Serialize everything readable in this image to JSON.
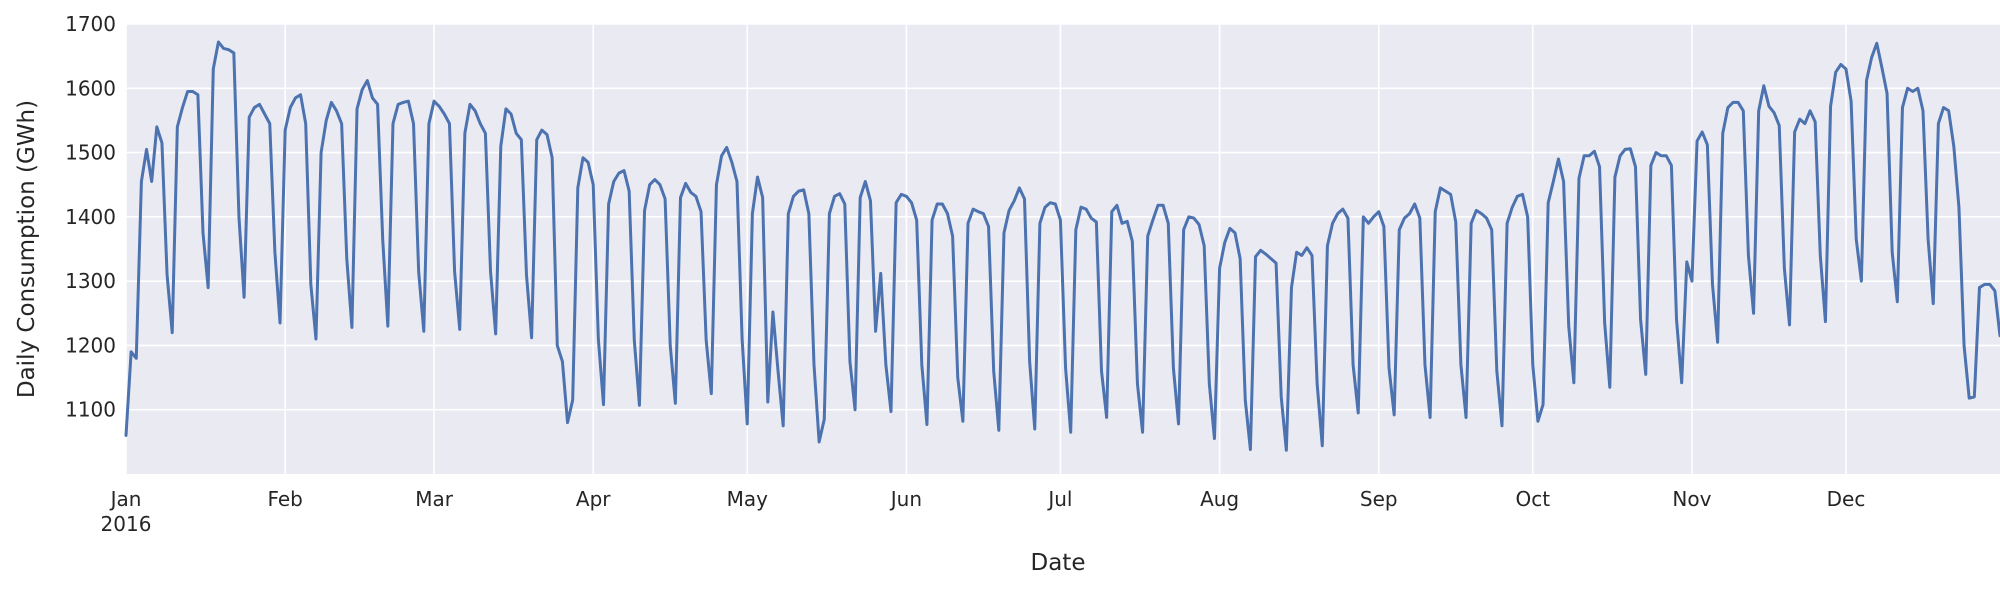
{
  "chart_data": {
    "type": "line",
    "title": "",
    "xlabel": "Date",
    "ylabel": "Daily Consumption (GWh)",
    "xlim": [
      "2016-01-01",
      "2016-12-31"
    ],
    "ylim": [
      1000,
      1700
    ],
    "yticks": [
      1100,
      1200,
      1300,
      1400,
      1500,
      1600,
      1700
    ],
    "xticks": [
      {
        "date": "2016-01-01",
        "label": "Jan",
        "sublabel": "2016"
      },
      {
        "date": "2016-02-01",
        "label": "Feb"
      },
      {
        "date": "2016-03-01",
        "label": "Mar"
      },
      {
        "date": "2016-04-01",
        "label": "Apr"
      },
      {
        "date": "2016-05-01",
        "label": "May"
      },
      {
        "date": "2016-06-01",
        "label": "Jun"
      },
      {
        "date": "2016-07-01",
        "label": "Jul"
      },
      {
        "date": "2016-08-01",
        "label": "Aug"
      },
      {
        "date": "2016-09-01",
        "label": "Sep"
      },
      {
        "date": "2016-10-01",
        "label": "Oct"
      },
      {
        "date": "2016-11-01",
        "label": "Nov"
      },
      {
        "date": "2016-12-01",
        "label": "Dec"
      }
    ],
    "grid": true,
    "line_color": "#4c72b0",
    "background_color": "#eaeaf2",
    "series": [
      {
        "start_date": "2016-01-01",
        "values": [
          1060,
          1190,
          1180,
          1455,
          1505,
          1455,
          1540,
          1515,
          1310,
          1220,
          1540,
          1570,
          1595,
          1595,
          1590,
          1375,
          1290,
          1630,
          1672,
          1662,
          1660,
          1655,
          1400,
          1275,
          1555,
          1570,
          1575,
          1560,
          1545,
          1345,
          1235,
          1535,
          1570,
          1585,
          1590,
          1545,
          1295,
          1210,
          1500,
          1550,
          1578,
          1565,
          1545,
          1335,
          1228,
          1568,
          1598,
          1612,
          1585,
          1575,
          1365,
          1230,
          1545,
          1575,
          1578,
          1580,
          1545,
          1315,
          1222,
          1545,
          1580,
          1572,
          1560,
          1545,
          1315,
          1225,
          1530,
          1575,
          1565,
          1545,
          1530,
          1315,
          1218,
          1510,
          1568,
          1560,
          1530,
          1520,
          1310,
          1212,
          1520,
          1535,
          1528,
          1492,
          1200,
          1175,
          1080,
          1115,
          1445,
          1492,
          1485,
          1450,
          1210,
          1108,
          1420,
          1455,
          1468,
          1472,
          1440,
          1208,
          1107,
          1410,
          1450,
          1458,
          1450,
          1428,
          1200,
          1110,
          1430,
          1452,
          1438,
          1432,
          1408,
          1208,
          1125,
          1450,
          1495,
          1508,
          1485,
          1455,
          1210,
          1078,
          1405,
          1462,
          1430,
          1112,
          1252,
          1160,
          1075,
          1405,
          1432,
          1440,
          1442,
          1405,
          1170,
          1050,
          1085,
          1405,
          1432,
          1436,
          1420,
          1175,
          1100,
          1430,
          1455,
          1425,
          1222,
          1312,
          1170,
          1097,
          1422,
          1435,
          1432,
          1422,
          1395,
          1170,
          1077,
          1395,
          1420,
          1420,
          1405,
          1370,
          1150,
          1082,
          1390,
          1412,
          1408,
          1405,
          1385,
          1160,
          1068,
          1375,
          1410,
          1425,
          1445,
          1428,
          1175,
          1070,
          1390,
          1415,
          1422,
          1420,
          1395,
          1165,
          1065,
          1380,
          1415,
          1412,
          1398,
          1392,
          1160,
          1088,
          1408,
          1418,
          1390,
          1393,
          1362,
          1140,
          1065,
          1370,
          1395,
          1418,
          1418,
          1390,
          1165,
          1078,
          1380,
          1400,
          1398,
          1388,
          1355,
          1140,
          1055,
          1320,
          1360,
          1382,
          1375,
          1335,
          1115,
          1038,
          1338,
          1348,
          1342,
          1335,
          1328,
          1120,
          1037,
          1290,
          1345,
          1340,
          1352,
          1340,
          1140,
          1044,
          1355,
          1390,
          1405,
          1412,
          1398,
          1170,
          1095,
          1400,
          1390,
          1400,
          1408,
          1385,
          1165,
          1092,
          1380,
          1398,
          1405,
          1420,
          1398,
          1170,
          1088,
          1408,
          1445,
          1440,
          1435,
          1392,
          1170,
          1088,
          1390,
          1410,
          1405,
          1398,
          1380,
          1160,
          1075,
          1390,
          1415,
          1432,
          1435,
          1400,
          1170,
          1082,
          1108,
          1422,
          1455,
          1490,
          1455,
          1230,
          1142,
          1460,
          1495,
          1495,
          1502,
          1478,
          1235,
          1135,
          1462,
          1495,
          1505,
          1506,
          1478,
          1240,
          1155,
          1480,
          1500,
          1495,
          1495,
          1480,
          1240,
          1142,
          1330,
          1300,
          1518,
          1532,
          1512,
          1295,
          1205,
          1530,
          1570,
          1578,
          1578,
          1565,
          1340,
          1250,
          1565,
          1604,
          1572,
          1562,
          1542,
          1320,
          1232,
          1532,
          1552,
          1545,
          1565,
          1548,
          1340,
          1237,
          1572,
          1625,
          1637,
          1630,
          1580,
          1365,
          1300,
          1612,
          1648,
          1670,
          1632,
          1592,
          1345,
          1268,
          1570,
          1600,
          1595,
          1600,
          1565,
          1365,
          1265,
          1545,
          1570,
          1565,
          1510,
          1415,
          1200,
          1118,
          1120,
          1290,
          1295,
          1295,
          1285,
          1215
        ]
      }
    ]
  }
}
